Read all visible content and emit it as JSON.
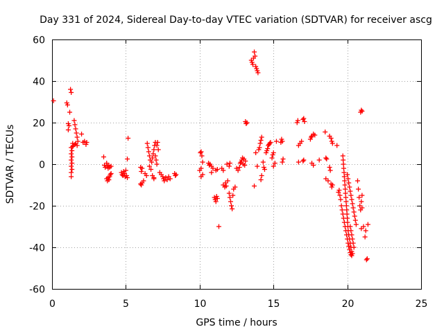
{
  "chart_data": {
    "type": "scatter",
    "title": "Day 331 of 2024, Sidereal Day-to-day VTEC variation (SDTVAR) for receiver ascg",
    "xlabel": "GPS time / hours",
    "ylabel": "SDTVAR / TECUs",
    "xlim": [
      0,
      25
    ],
    "ylim": [
      -60,
      60
    ],
    "xticks": [
      0,
      5,
      10,
      15,
      20,
      25
    ],
    "yticks": [
      -60,
      -40,
      -20,
      0,
      20,
      40,
      60
    ],
    "grid": true,
    "marker": "plus",
    "color": "#ff0000",
    "series": [
      {
        "name": "SDTVAR",
        "points": [
          [
            0.1,
            30.5
          ],
          [
            1.0,
            29.5
          ],
          [
            1.05,
            28.5
          ],
          [
            1.1,
            19.5
          ],
          [
            1.1,
            16.5
          ],
          [
            1.15,
            18.5
          ],
          [
            1.2,
            25.0
          ],
          [
            1.25,
            36.0
          ],
          [
            1.3,
            34.5
          ],
          [
            1.3,
            8.0
          ],
          [
            1.3,
            5.0
          ],
          [
            1.3,
            2.0
          ],
          [
            1.3,
            -1.0
          ],
          [
            1.3,
            -4.0
          ],
          [
            1.3,
            -6.0
          ],
          [
            1.35,
            6.5
          ],
          [
            1.35,
            3.5
          ],
          [
            1.35,
            0.5
          ],
          [
            1.35,
            -2.5
          ],
          [
            1.4,
            8.5
          ],
          [
            1.4,
            10.0
          ],
          [
            1.45,
            9.0
          ],
          [
            1.5,
            21.0
          ],
          [
            1.55,
            19.0
          ],
          [
            1.55,
            9.5
          ],
          [
            1.6,
            17.0
          ],
          [
            1.6,
            10.0
          ],
          [
            1.65,
            15.0
          ],
          [
            1.7,
            13.0
          ],
          [
            1.7,
            9.0
          ],
          [
            1.75,
            11.0
          ],
          [
            2.0,
            14.5
          ],
          [
            2.1,
            10.5
          ],
          [
            2.2,
            11.0
          ],
          [
            2.3,
            9.5
          ],
          [
            2.35,
            10.5
          ],
          [
            3.5,
            3.5
          ],
          [
            3.55,
            -0.5
          ],
          [
            3.6,
            -1.5
          ],
          [
            3.7,
            0.5
          ],
          [
            3.75,
            -1.0
          ],
          [
            3.8,
            -2.0
          ],
          [
            3.85,
            -0.5
          ],
          [
            3.9,
            -1.5
          ],
          [
            4.0,
            -1.0
          ],
          [
            3.7,
            -7.0
          ],
          [
            3.75,
            -8.0
          ],
          [
            3.8,
            -6.5
          ],
          [
            3.85,
            -7.5
          ],
          [
            3.9,
            -6.0
          ],
          [
            3.95,
            -5.0
          ],
          [
            4.0,
            -4.5
          ],
          [
            4.7,
            -4.0
          ],
          [
            4.75,
            -5.0
          ],
          [
            4.8,
            -5.5
          ],
          [
            4.85,
            -3.5
          ],
          [
            4.9,
            -4.5
          ],
          [
            4.95,
            -6.0
          ],
          [
            5.0,
            -3.0
          ],
          [
            5.05,
            -5.5
          ],
          [
            5.1,
            -6.5
          ],
          [
            5.15,
            12.5
          ],
          [
            5.1,
            2.5
          ],
          [
            6.0,
            -1.5
          ],
          [
            6.05,
            -3.5
          ],
          [
            6.1,
            -2.0
          ],
          [
            6.0,
            -9.5
          ],
          [
            6.05,
            -10.0
          ],
          [
            6.1,
            -9.0
          ],
          [
            6.2,
            -8.0
          ],
          [
            6.3,
            -4.5
          ],
          [
            6.4,
            -5.5
          ],
          [
            6.45,
            10.0
          ],
          [
            6.5,
            8.0
          ],
          [
            6.55,
            6.0
          ],
          [
            6.6,
            4.0
          ],
          [
            6.65,
            2.0
          ],
          [
            6.6,
            -1.0
          ],
          [
            6.7,
            -2.5
          ],
          [
            6.75,
            1.0
          ],
          [
            6.8,
            3.0
          ],
          [
            6.85,
            5.0
          ],
          [
            6.9,
            7.0
          ],
          [
            6.95,
            9.0
          ],
          [
            7.0,
            10.5
          ],
          [
            6.8,
            -5.5
          ],
          [
            6.9,
            -6.5
          ],
          [
            6.9,
            -7.0
          ],
          [
            7.0,
            4.0
          ],
          [
            7.05,
            2.0
          ],
          [
            7.1,
            0.0
          ],
          [
            7.1,
            9.0
          ],
          [
            7.15,
            10.5
          ],
          [
            7.2,
            7.0
          ],
          [
            7.3,
            -4.0
          ],
          [
            7.4,
            -5.0
          ],
          [
            7.5,
            -6.0
          ],
          [
            7.55,
            -7.0
          ],
          [
            7.6,
            -8.0
          ],
          [
            7.7,
            -6.5
          ],
          [
            7.8,
            -7.5
          ],
          [
            7.9,
            -6.0
          ],
          [
            8.0,
            -7.0
          ],
          [
            8.3,
            -4.5
          ],
          [
            8.35,
            -5.5
          ],
          [
            8.4,
            -5.0
          ],
          [
            10.0,
            -3.0
          ],
          [
            10.05,
            5.5
          ],
          [
            10.1,
            6.0
          ],
          [
            10.15,
            4.0
          ],
          [
            10.2,
            1.0
          ],
          [
            10.1,
            -2.0
          ],
          [
            10.1,
            -6.0
          ],
          [
            10.2,
            -5.0
          ],
          [
            10.6,
            0.5
          ],
          [
            10.65,
            -0.5
          ],
          [
            10.7,
            0.0
          ],
          [
            10.8,
            -1.0
          ],
          [
            10.9,
            -2.0
          ],
          [
            10.8,
            -4.0
          ],
          [
            11.0,
            -16.0
          ],
          [
            11.05,
            -17.0
          ],
          [
            11.1,
            -18.0
          ],
          [
            11.15,
            -15.5
          ],
          [
            11.2,
            -16.5
          ],
          [
            11.1,
            -3.0
          ],
          [
            11.2,
            -2.5
          ],
          [
            11.3,
            -30.0
          ],
          [
            11.5,
            -2.0
          ],
          [
            11.6,
            -3.0
          ],
          [
            11.6,
            -10.0
          ],
          [
            11.7,
            -11.0
          ],
          [
            11.75,
            -9.0
          ],
          [
            11.8,
            -10.5
          ],
          [
            11.9,
            -8.0
          ],
          [
            11.85,
            0.0
          ],
          [
            12.0,
            -1.0
          ],
          [
            12.05,
            0.5
          ],
          [
            12.0,
            -14.0
          ],
          [
            12.05,
            -16.0
          ],
          [
            12.1,
            -18.0
          ],
          [
            12.15,
            -20.0
          ],
          [
            12.2,
            -21.5
          ],
          [
            12.25,
            -15.0
          ],
          [
            12.3,
            -12.0
          ],
          [
            12.4,
            -11.0
          ],
          [
            12.5,
            -2.0
          ],
          [
            12.6,
            -3.0
          ],
          [
            12.7,
            -1.5
          ],
          [
            12.75,
            0.5
          ],
          [
            12.8,
            1.0
          ],
          [
            12.85,
            2.0
          ],
          [
            12.9,
            3.0
          ],
          [
            12.95,
            0.0
          ],
          [
            13.0,
            2.5
          ],
          [
            13.05,
            -0.5
          ],
          [
            13.1,
            1.5
          ],
          [
            13.1,
            20.5
          ],
          [
            13.15,
            19.5
          ],
          [
            13.2,
            20.0
          ],
          [
            13.5,
            50.0
          ],
          [
            13.55,
            49.0
          ],
          [
            13.6,
            48.0
          ],
          [
            13.65,
            51.0
          ],
          [
            13.7,
            54.0
          ],
          [
            13.75,
            52.0
          ],
          [
            13.8,
            47.0
          ],
          [
            13.85,
            46.0
          ],
          [
            13.9,
            45.0
          ],
          [
            13.95,
            44.0
          ],
          [
            13.7,
            -10.5
          ],
          [
            13.8,
            5.5
          ],
          [
            13.9,
            -1.0
          ],
          [
            14.0,
            7.0
          ],
          [
            14.05,
            8.0
          ],
          [
            14.1,
            10.0
          ],
          [
            14.15,
            11.5
          ],
          [
            14.2,
            13.0
          ],
          [
            14.15,
            -7.5
          ],
          [
            14.2,
            -5.5
          ],
          [
            14.3,
            1.0
          ],
          [
            14.35,
            -1.5
          ],
          [
            14.4,
            -2.5
          ],
          [
            14.5,
            5.5
          ],
          [
            14.55,
            6.5
          ],
          [
            14.6,
            7.5
          ],
          [
            14.65,
            9.0
          ],
          [
            14.7,
            9.5
          ],
          [
            14.75,
            10.0
          ],
          [
            14.8,
            10.5
          ],
          [
            14.9,
            3.0
          ],
          [
            14.95,
            4.5
          ],
          [
            15.0,
            5.5
          ],
          [
            15.0,
            -1.0
          ],
          [
            15.1,
            0.5
          ],
          [
            15.2,
            11.0
          ],
          [
            15.5,
            10.5
          ],
          [
            15.55,
            12.0
          ],
          [
            15.6,
            11.0
          ],
          [
            15.6,
            1.0
          ],
          [
            15.65,
            2.5
          ],
          [
            16.6,
            20.0
          ],
          [
            16.65,
            21.0
          ],
          [
            16.7,
            1.0
          ],
          [
            16.7,
            9.0
          ],
          [
            16.8,
            10.0
          ],
          [
            16.9,
            11.0
          ],
          [
            17.0,
            21.5
          ],
          [
            17.05,
            22.0
          ],
          [
            17.1,
            20.5
          ],
          [
            17.0,
            1.5
          ],
          [
            17.05,
            2.0
          ],
          [
            17.5,
            12.0
          ],
          [
            17.55,
            13.0
          ],
          [
            17.6,
            13.5
          ],
          [
            17.7,
            14.5
          ],
          [
            17.8,
            14.0
          ],
          [
            17.6,
            0.5
          ],
          [
            17.7,
            -0.5
          ],
          [
            18.1,
            2.0
          ],
          [
            18.5,
            15.5
          ],
          [
            18.55,
            3.0
          ],
          [
            18.6,
            2.5
          ],
          [
            18.55,
            -7.0
          ],
          [
            18.7,
            -8.0
          ],
          [
            18.8,
            13.5
          ],
          [
            18.9,
            12.5
          ],
          [
            18.95,
            11.0
          ],
          [
            19.0,
            10.0
          ],
          [
            18.8,
            -1.5
          ],
          [
            18.85,
            -3.0
          ],
          [
            18.9,
            -9.5
          ],
          [
            18.95,
            -11.0
          ],
          [
            19.0,
            -10.0
          ],
          [
            19.3,
            9.0
          ],
          [
            19.4,
            -13.5
          ],
          [
            19.45,
            -12.5
          ],
          [
            19.5,
            -15.0
          ],
          [
            19.55,
            -17.0
          ],
          [
            19.6,
            -20.0
          ],
          [
            19.65,
            -22.0
          ],
          [
            19.7,
            -24.0
          ],
          [
            19.75,
            -26.0
          ],
          [
            19.8,
            -28.0
          ],
          [
            19.85,
            -30.0
          ],
          [
            19.9,
            -32.0
          ],
          [
            19.95,
            -34.0
          ],
          [
            20.0,
            -36.0
          ],
          [
            20.05,
            -38.0
          ],
          [
            20.1,
            -39.5
          ],
          [
            20.15,
            -41.0
          ],
          [
            20.2,
            -42.5
          ],
          [
            20.25,
            -43.5
          ],
          [
            20.3,
            -44.0
          ],
          [
            19.7,
            4.0
          ],
          [
            19.72,
            2.0
          ],
          [
            19.74,
            0.0
          ],
          [
            19.76,
            -2.0
          ],
          [
            19.78,
            -4.0
          ],
          [
            19.8,
            -6.0
          ],
          [
            19.82,
            -8.0
          ],
          [
            19.84,
            -10.0
          ],
          [
            19.86,
            -12.0
          ],
          [
            19.88,
            -14.0
          ],
          [
            19.9,
            -16.0
          ],
          [
            19.92,
            -18.0
          ],
          [
            19.94,
            -20.0
          ],
          [
            19.96,
            -22.0
          ],
          [
            19.98,
            -24.0
          ],
          [
            20.0,
            -26.0
          ],
          [
            20.02,
            -28.0
          ],
          [
            20.04,
            -30.0
          ],
          [
            20.06,
            -32.0
          ],
          [
            20.1,
            -34.0
          ],
          [
            20.15,
            -36.0
          ],
          [
            20.2,
            -38.0
          ],
          [
            20.25,
            -40.0
          ],
          [
            20.3,
            -42.0
          ],
          [
            20.35,
            -43.0
          ],
          [
            20.0,
            -5.0
          ],
          [
            20.05,
            -7.0
          ],
          [
            20.1,
            -9.0
          ],
          [
            20.15,
            -11.0
          ],
          [
            20.2,
            -13.0
          ],
          [
            20.25,
            -15.0
          ],
          [
            20.3,
            -17.0
          ],
          [
            20.35,
            -19.0
          ],
          [
            20.4,
            -21.0
          ],
          [
            20.45,
            -23.0
          ],
          [
            20.5,
            -25.0
          ],
          [
            20.55,
            -27.0
          ],
          [
            20.6,
            -29.0
          ],
          [
            20.2,
            -30.0
          ],
          [
            20.25,
            -32.0
          ],
          [
            20.3,
            -34.0
          ],
          [
            20.35,
            -36.0
          ],
          [
            20.4,
            -38.0
          ],
          [
            20.45,
            -40.0
          ],
          [
            20.7,
            -8.0
          ],
          [
            20.75,
            -12.0
          ],
          [
            20.8,
            -16.0
          ],
          [
            20.85,
            -20.0
          ],
          [
            20.9,
            -22.0
          ],
          [
            20.95,
            -18.0
          ],
          [
            21.0,
            -15.0
          ],
          [
            21.0,
            -21.0
          ],
          [
            20.95,
            -31.0
          ],
          [
            20.9,
            25.0
          ],
          [
            20.95,
            26.0
          ],
          [
            21.0,
            25.5
          ],
          [
            21.1,
            -30.0
          ],
          [
            21.2,
            -35.0
          ],
          [
            21.25,
            -32.0
          ],
          [
            21.3,
            -46.0
          ],
          [
            21.35,
            -45.5
          ],
          [
            21.4,
            -29.0
          ]
        ]
      }
    ]
  }
}
